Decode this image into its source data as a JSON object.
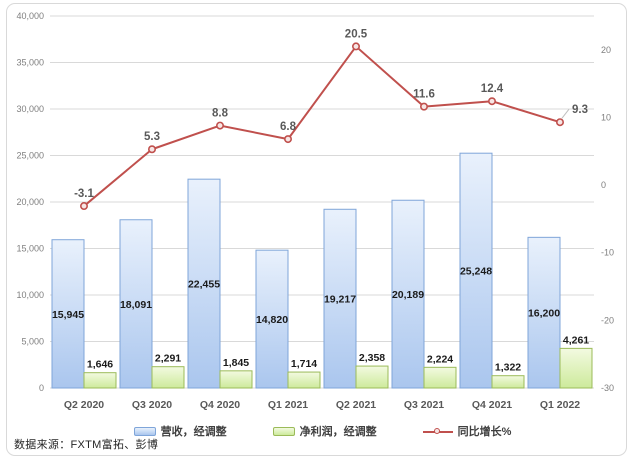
{
  "source_note": "数据来源：FXTM富拓、彭博",
  "chart_data": {
    "type": "combo",
    "title": "",
    "categories": [
      "Q2 2020",
      "Q3 2020",
      "Q4 2020",
      "Q1 2021",
      "Q2 2021",
      "Q3 2021",
      "Q4 2021",
      "Q1 2022"
    ],
    "series": [
      {
        "name": "营收，经调整",
        "type": "bar",
        "axis": "left",
        "values": [
          15945,
          18091,
          22455,
          14820,
          19217,
          20189,
          25248,
          16200
        ],
        "labels": [
          "15,945",
          "18,091",
          "22,455",
          "14,820",
          "19,217",
          "20,189",
          "25,248",
          "16,200"
        ]
      },
      {
        "name": "净利润，经调整",
        "type": "bar",
        "axis": "left",
        "values": [
          1646,
          2291,
          1845,
          1714,
          2358,
          2224,
          1322,
          4261
        ],
        "labels": [
          "1,646",
          "2,291",
          "1,845",
          "1,714",
          "2,358",
          "2,224",
          "1,322",
          "4,261"
        ]
      },
      {
        "name": "同比增长%",
        "type": "line",
        "axis": "right",
        "values": [
          -3.1,
          5.3,
          8.8,
          6.8,
          20.5,
          11.6,
          12.4,
          9.3
        ],
        "labels": [
          "-3.1",
          "5.3",
          "8.8",
          "6.8",
          "20.5",
          "11.6",
          "12.4",
          "9.3"
        ]
      }
    ],
    "left_axis": {
      "min": 0,
      "max": 40000,
      "step": 5000,
      "tick_labels": [
        "0",
        "5,000",
        "10,000",
        "15,000",
        "20,000",
        "25,000",
        "30,000",
        "35,000",
        "40,000"
      ]
    },
    "right_axis": {
      "min": -30,
      "max": 25,
      "step": 10,
      "tick_labels": [
        "-30",
        "-20",
        "-10",
        "0",
        "10",
        "20"
      ]
    },
    "grid": true,
    "legend_position": "bottom",
    "colors": {
      "revenue_fill_top": "#e9f1fc",
      "revenue_fill_bottom": "#aac6ee",
      "revenue_border": "#7fa5d9",
      "profit_fill_top": "#f3fae1",
      "profit_fill_bottom": "#cdea9b",
      "profit_border": "#9bbb59",
      "growth_line": "#c0504d",
      "marker_fill": "#f7e6e5",
      "gridline": "#d9d9d9",
      "axis_text": "#7f7f7f",
      "category_text": "#595959",
      "bar_label": "#1a1a1a",
      "line_label": "#595959",
      "card_border": "#d9d9d9"
    }
  }
}
